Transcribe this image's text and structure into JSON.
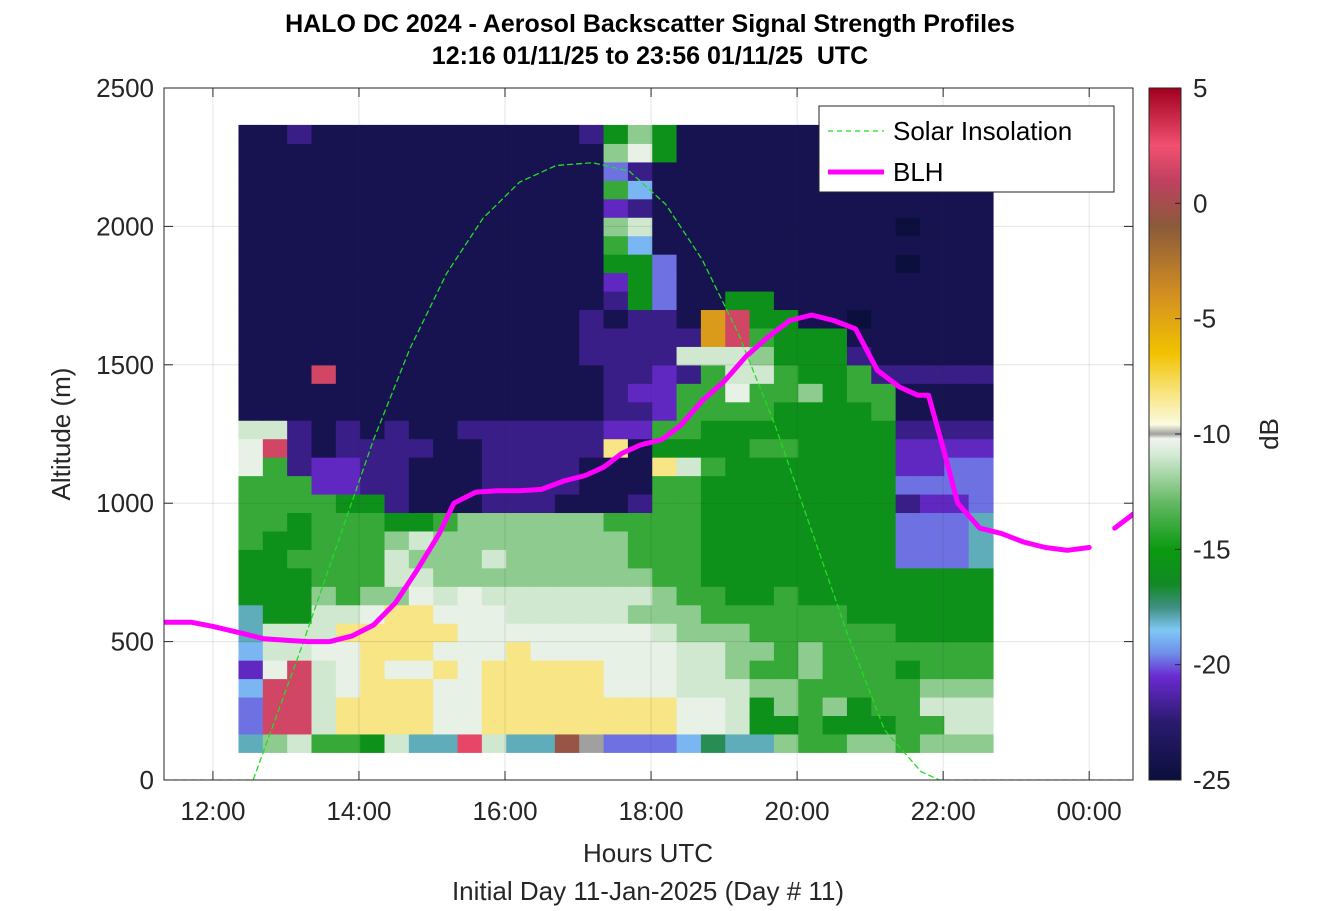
{
  "chart_data": {
    "type": "heatmap",
    "title": "HALO DC 2024 - Aerosol Backscatter Signal Strength Profiles",
    "subtitle": "12:16 01/11/25 to 23:56 01/11/25  UTC",
    "xlabel": "Hours UTC",
    "xlabel2": "Initial Day 11-Jan-2025 (Day # 11)",
    "ylabel": "Altitude (m)",
    "xlim": [
      11.33,
      24.6
    ],
    "ylim": [
      0,
      2500
    ],
    "x_ticks": [
      12,
      14,
      16,
      18,
      20,
      22,
      24
    ],
    "x_tick_labels": [
      "12:00",
      "14:00",
      "16:00",
      "18:00",
      "20:00",
      "22:00",
      "00:00"
    ],
    "y_ticks": [
      0,
      500,
      1000,
      1500,
      2000,
      2500
    ],
    "y_tick_labels": [
      "0",
      "500",
      "1000",
      "1500",
      "2000",
      "2500"
    ],
    "grid": true,
    "colorbar": {
      "label": "dB",
      "range": [
        -25,
        5
      ],
      "ticks": [
        5,
        0,
        -5,
        -10,
        -15,
        -20,
        -25
      ],
      "tick_labels": [
        "5",
        "0",
        "-5",
        "-10",
        "-15",
        "-20",
        "-25"
      ],
      "colors": [
        {
          "v": -25,
          "c": "#0a0f3c"
        },
        {
          "v": -22.5,
          "c": "#2a1a6e"
        },
        {
          "v": -20.5,
          "c": "#6a2ad0"
        },
        {
          "v": -19.5,
          "c": "#6f8fea"
        },
        {
          "v": -18.5,
          "c": "#7fc8f5"
        },
        {
          "v": -17.5,
          "c": "#3f8f80"
        },
        {
          "v": -16.5,
          "c": "#118a24"
        },
        {
          "v": -15,
          "c": "#0a9a10"
        },
        {
          "v": -13,
          "c": "#62b862"
        },
        {
          "v": -11,
          "c": "#cfe8cf"
        },
        {
          "v": -10.2,
          "c": "#f0f4ee"
        },
        {
          "v": -10,
          "c": "#a0a0a0"
        },
        {
          "v": -9.6,
          "c": "#fbfbe0"
        },
        {
          "v": -8,
          "c": "#f7e070"
        },
        {
          "v": -6.5,
          "c": "#f2c200"
        },
        {
          "v": -4,
          "c": "#d49020"
        },
        {
          "v": -1,
          "c": "#8a5a3a"
        },
        {
          "v": 1,
          "c": "#c04060"
        },
        {
          "v": 2.5,
          "c": "#f25070"
        },
        {
          "v": 5,
          "c": "#a0001e"
        }
      ]
    },
    "grid_x": {
      "start": 12.35,
      "step": 0.3333
    },
    "grid_y": {
      "start": 100,
      "step": 66.667
    },
    "heatmap_rows_bottom_to_top": [
      "hlmkkjmhhrmhhstfffgihhlkkllklll",
      "fppmoooonnoooooooonnmjjkjjjkkmm",
      "fppmoooonnoooooooonnmjlkljkkmmm",
      "gppmnooonnooooonnnmmmllkkkkklll",
      "enpmnonnonooooonnnmmlkklkkkjkkk",
      "gmmnnooonnnonnnnnnmmllklkkkkkkk",
      "hmmmooooonnnnnnnnmlllkkkkkkjjjj",
      "hjjmmnoonnnmmmmmlllkkkkkkjjjjjj",
      "jjjlkllnmnmmmmmmmlkkjjkjjjjjjjj",
      "jjjkkkmmlllllllllkkjjjjjjjjjjjj",
      "jjkkkkmlllmlllllkkkjjjjjjjjfffh",
      "kjjkkklmllllllllkkkjjjjjjjjfffh",
      "kkjkkkjjkllllllkkkkjjjjjjjjfffh",
      "kkkkjjdcccdddcccdkkjjjjjjjjdeef",
      "kkkeeddcccddddccckkjjjjjjjjffff",
      "nkdeeddcccddddcccomkjjjjjjjeeff",
      "npdcddddccdddddocjjjjkkjjjjeeee",
      "mmdcdcdccddddddeekkjjjjjjjjdddd",
      "cccccccccccccccddekkkkjjjjkcccc",
      "cccccccccccccccdeekknkkljkkcccc",
      "cccpcccccccccccddedkmmkjjkddddd",
      "ccccccccccccccddddmmmljjjdccccc",
      "ccccccccccccccdddddqpkjjjcccccc",
      "ccccccccccccccdcddcqpjjccbccccc",
      "cccccccccccccccdjfccjjccccccccc",
      "cccccccccccccccejfccccccccccccc",
      "cccccccccccccccjjfcccccccccbccc",
      "ccccccccccccccckgcccccccccccccc",
      "ccccccccccccccclmccccccccccbccc",
      "cccccccccccccccedcccccccccccccc",
      "ccccccccccccccckgcccccccccccccc",
      "cccccccccccccccfdcccccccccccccc",
      "ccccccccccccccclnjccccccccccccc",
      "ccdcccccccccccdjljccccccccccccc"
    ],
    "heatmap_level_key": {
      "b": -25,
      "c": -24,
      "d": -22,
      "e": -20.8,
      "f": -19.8,
      "g": -18.8,
      "h": -18,
      "i": -17,
      "j": -15.8,
      "k": -14,
      "l": -12.2,
      "m": -11,
      "n": -10.4,
      "o": -8.3,
      "p": 1.5,
      "q": -4.5,
      "r": 2.8,
      "s": -0.5,
      "t": -10
    },
    "series": [
      {
        "name": "Solar Insolation",
        "style": "dashed",
        "color": "#22dd22",
        "x": [
          11.33,
          12.55,
          12.8,
          13.2,
          13.7,
          14.2,
          14.7,
          15.2,
          15.7,
          16.2,
          16.7,
          17.2,
          17.7,
          18.2,
          18.7,
          19.2,
          19.7,
          20.2,
          20.7,
          21.2,
          21.7,
          21.95,
          24.6
        ],
        "y": [
          0,
          0,
          180,
          470,
          850,
          1230,
          1560,
          1830,
          2030,
          2160,
          2220,
          2230,
          2200,
          2080,
          1880,
          1610,
          1280,
          900,
          520,
          180,
          30,
          0,
          0
        ]
      },
      {
        "name": "BLH",
        "style": "solid",
        "color": "#ff00ff",
        "x": [
          11.33,
          11.7,
          12.0,
          12.4,
          12.7,
          13.0,
          13.3,
          13.6,
          13.9,
          14.2,
          14.5,
          14.8,
          15.1,
          15.3,
          15.6,
          15.9,
          16.2,
          16.5,
          16.8,
          17.1,
          17.35,
          17.6,
          17.85,
          18.15,
          18.4,
          18.7,
          19.0,
          19.3,
          19.6,
          19.9,
          20.2,
          20.5,
          20.8,
          21.1,
          21.4,
          21.65,
          21.8,
          22.0,
          22.2,
          22.5,
          22.8,
          23.1,
          23.4,
          23.7,
          24.0
        ],
        "y": [
          570,
          570,
          555,
          530,
          510,
          505,
          500,
          500,
          520,
          560,
          640,
          760,
          890,
          1000,
          1040,
          1045,
          1045,
          1050,
          1080,
          1100,
          1130,
          1180,
          1210,
          1230,
          1280,
          1370,
          1440,
          1530,
          1600,
          1660,
          1680,
          1660,
          1630,
          1480,
          1420,
          1390,
          1390,
          1200,
          1000,
          910,
          890,
          860,
          840,
          830,
          840
        ]
      },
      {
        "name": "",
        "style": "solid",
        "color": "#ff00ff",
        "x": [
          24.35,
          24.6
        ],
        "y": [
          910,
          960
        ]
      }
    ],
    "legend": {
      "location": "top-right",
      "entries": [
        "Solar Insolation",
        "BLH"
      ]
    }
  },
  "colors": {
    "solar": "#22dd22",
    "blh": "#ff00ff",
    "axis": "#262626"
  }
}
